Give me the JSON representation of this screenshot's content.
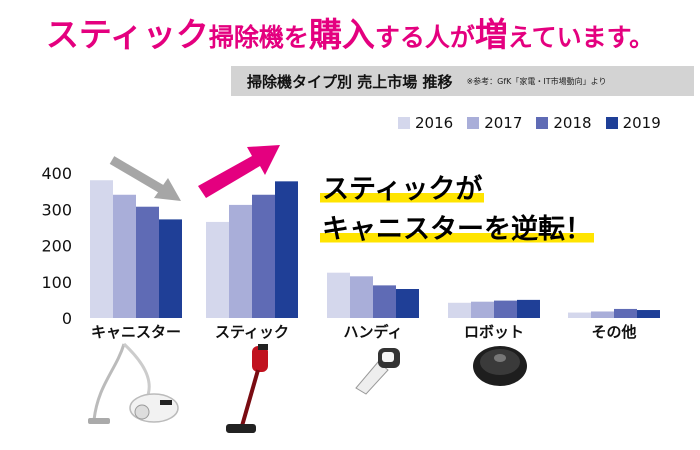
{
  "headline": {
    "parts": [
      "スティック",
      "掃除機を",
      "購入",
      "する人が",
      "増",
      "えています。"
    ]
  },
  "subtitle": {
    "main": "掃除機タイプ別 売上市場 推移",
    "source": "※参考：GfK「家電・IT市場動向」より"
  },
  "callout": {
    "line1": "スティックが",
    "line2": "キャニスターを逆転！"
  },
  "colors": {
    "headline": "#e4007f",
    "arrow_up": "#e4007f",
    "arrow_down": "#a6a6a6",
    "highlight": "#ffe400",
    "series": [
      "#d4d7ec",
      "#a9aed9",
      "#5f6bb5",
      "#1f3f97"
    ]
  },
  "product_icons": [
    "canister-vacuum-icon",
    "stick-vacuum-icon",
    "handheld-vacuum-icon",
    "robot-vacuum-icon"
  ],
  "chart_data": {
    "type": "bar",
    "title": "掃除機タイプ別 売上市場 推移",
    "categories": [
      "キャニスター",
      "スティック",
      "ハンディ",
      "ロボット",
      "その他"
    ],
    "series": [
      {
        "name": "2016",
        "values": [
          380,
          265,
          125,
          42,
          15
        ]
      },
      {
        "name": "2017",
        "values": [
          340,
          312,
          115,
          45,
          18
        ]
      },
      {
        "name": "2018",
        "values": [
          307,
          340,
          90,
          48,
          25
        ]
      },
      {
        "name": "2019",
        "values": [
          272,
          377,
          80,
          50,
          22
        ]
      }
    ],
    "yticks": [
      0,
      100,
      200,
      300,
      400
    ],
    "ylim": [
      0,
      400
    ],
    "grid": false,
    "legend_position": "top-right"
  }
}
